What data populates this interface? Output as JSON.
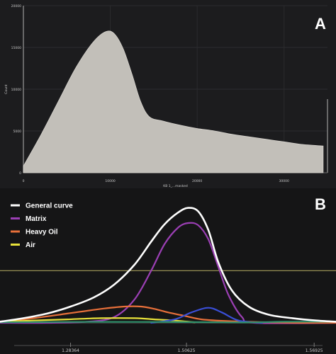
{
  "chart_data": [
    {
      "panel": "A",
      "type": "area",
      "xlabel": "KB 1_...masked",
      "ylabel": "Count",
      "x_ticks": [
        "0",
        "10000",
        "20000",
        "30000"
      ],
      "y_ticks": [
        "0",
        "5000",
        "10000",
        "15000",
        "20000"
      ],
      "xlim": [
        0,
        35000
      ],
      "ylim": [
        0,
        20000
      ],
      "grid": true,
      "x": [
        0,
        2000,
        4000,
        6000,
        8000,
        9500,
        10500,
        11500,
        12500,
        13500,
        14500,
        16000,
        18000,
        20000,
        22000,
        24000,
        26000,
        28000,
        30000,
        32000,
        34500
      ],
      "y": [
        800,
        4500,
        8500,
        12500,
        15600,
        16900,
        16600,
        14800,
        11800,
        8500,
        6700,
        6200,
        5700,
        5300,
        5000,
        4600,
        4300,
        4000,
        3700,
        3400,
        3200
      ],
      "color": "#c2bfb9"
    },
    {
      "panel": "B",
      "type": "line",
      "x_ticks": [
        "1.28364",
        "1.50625",
        "1.56925"
      ],
      "xlim": [
        0,
        1
      ],
      "ylim": [
        0,
        1
      ],
      "series": [
        {
          "name": "General curve",
          "color": "#ffffff",
          "x": [
            0,
            0.07,
            0.14,
            0.21,
            0.28,
            0.34,
            0.4,
            0.45,
            0.49,
            0.53,
            0.56,
            0.59,
            0.62,
            0.65,
            0.69,
            0.74,
            0.8,
            0.87,
            0.94,
            1.0
          ],
          "y": [
            0.01,
            0.04,
            0.08,
            0.14,
            0.22,
            0.33,
            0.5,
            0.7,
            0.85,
            0.95,
            0.99,
            0.96,
            0.8,
            0.52,
            0.28,
            0.14,
            0.07,
            0.04,
            0.02,
            0.01
          ]
        },
        {
          "name": "Matrix",
          "color": "#9b3fb4",
          "x": [
            0,
            0.14,
            0.26,
            0.34,
            0.4,
            0.45,
            0.49,
            0.53,
            0.56,
            0.59,
            0.62,
            0.65,
            0.68,
            0.72,
            0.76,
            1.0
          ],
          "y": [
            0,
            0,
            0.01,
            0.05,
            0.2,
            0.45,
            0.68,
            0.82,
            0.86,
            0.84,
            0.72,
            0.48,
            0.24,
            0.05,
            0,
            0
          ]
        },
        {
          "name": "Heavy Oil",
          "color": "#e8703a",
          "x": [
            0,
            0.1,
            0.2,
            0.3,
            0.37,
            0.42,
            0.46,
            0.5,
            0.55,
            0.6,
            0.68,
            0.8,
            0.9,
            1.0
          ],
          "y": [
            0.01,
            0.04,
            0.08,
            0.12,
            0.14,
            0.14,
            0.12,
            0.09,
            0.06,
            0.03,
            0.015,
            0.005,
            0,
            0
          ]
        },
        {
          "name": "Air",
          "color": "#e8e23a",
          "x": [
            0,
            0.1,
            0.2,
            0.3,
            0.4,
            0.46,
            0.52,
            0.58
          ],
          "y": [
            0.01,
            0.02,
            0.03,
            0.04,
            0.04,
            0.03,
            0.02,
            0.005
          ]
        },
        {
          "color": "#3a4fd8",
          "x": [
            0.45,
            0.52,
            0.57,
            0.62,
            0.66,
            0.71,
            0.78
          ],
          "y": [
            0,
            0.03,
            0.09,
            0.13,
            0.09,
            0.02,
            0
          ]
        },
        {
          "color": "#2f8f6a",
          "x": [
            0,
            0.2,
            0.4,
            0.6,
            0.75,
            0.85,
            1.0
          ],
          "y": [
            0.005,
            0.008,
            0.008,
            0.006,
            0.004,
            0.01,
            0.01
          ]
        }
      ],
      "hline_y": 0.45,
      "hline_color": "#b7ae63"
    }
  ],
  "panel_labels": {
    "a": "A",
    "b": "B"
  }
}
